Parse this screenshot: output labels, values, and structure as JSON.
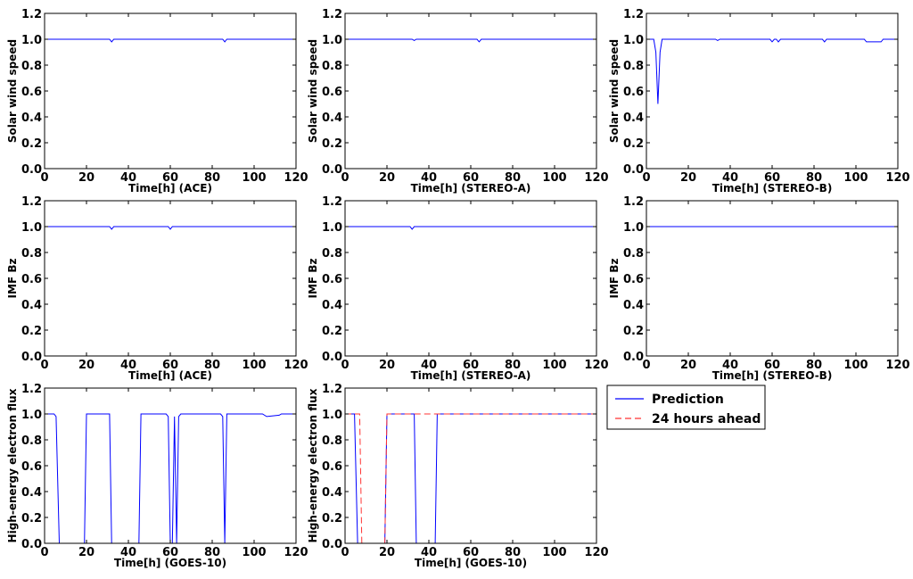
{
  "chart_data": [
    {
      "type": "line",
      "xlabel": "Time[h] (ACE)",
      "ylabel": "Solar wind speed",
      "xlim": [
        0,
        120
      ],
      "ylim": [
        0,
        1.2
      ],
      "xticks": [
        "0",
        "20",
        "40",
        "60",
        "80",
        "100",
        "120"
      ],
      "yticks": [
        "0.0",
        "0.2",
        "0.4",
        "0.6",
        "0.8",
        "1.0",
        "1.2"
      ],
      "series": [
        {
          "name": "Prediction",
          "color": "#0000ff",
          "style": "solid",
          "x": [
            0,
            31,
            32,
            33,
            85,
            86,
            87,
            120
          ],
          "y": [
            1,
            1,
            0.98,
            1,
            1,
            0.98,
            1,
            1
          ]
        }
      ]
    },
    {
      "type": "line",
      "xlabel": "Time[h] (STEREO-A)",
      "ylabel": "Solar wind speed",
      "xlim": [
        0,
        120
      ],
      "ylim": [
        0,
        1.2
      ],
      "xticks": [
        "0",
        "20",
        "40",
        "60",
        "80",
        "100",
        "120"
      ],
      "yticks": [
        "0.0",
        "0.2",
        "0.4",
        "0.6",
        "0.8",
        "1.0",
        "1.2"
      ],
      "series": [
        {
          "name": "Prediction",
          "color": "#0000ff",
          "style": "solid",
          "x": [
            0,
            32,
            33,
            34,
            63,
            64,
            65,
            120
          ],
          "y": [
            1,
            1,
            0.99,
            1,
            1,
            0.98,
            1,
            1
          ]
        }
      ]
    },
    {
      "type": "line",
      "xlabel": "Time[h] (STEREO-B)",
      "ylabel": "Solar wind speed",
      "xlim": [
        0,
        120
      ],
      "ylim": [
        0,
        1.2
      ],
      "xticks": [
        "0",
        "20",
        "40",
        "60",
        "80",
        "100",
        "120"
      ],
      "yticks": [
        "0.0",
        "0.2",
        "0.4",
        "0.6",
        "0.8",
        "1.0",
        "1.2"
      ],
      "series": [
        {
          "name": "Prediction",
          "color": "#0000ff",
          "style": "solid",
          "x": [
            0,
            3.5,
            4.5,
            5.5,
            6.5,
            7.5,
            33,
            34,
            35,
            59,
            60,
            61,
            62,
            63,
            64,
            84,
            85,
            86,
            104,
            105,
            112,
            113,
            120
          ],
          "y": [
            1,
            1,
            0.9,
            0.5,
            0.9,
            1,
            1,
            0.99,
            1,
            1,
            0.98,
            1,
            1,
            0.98,
            1,
            1,
            0.98,
            1,
            1,
            0.98,
            0.98,
            1,
            1
          ]
        }
      ]
    },
    {
      "type": "line",
      "xlabel": "Time[h] (ACE)",
      "ylabel": "IMF Bz",
      "xlim": [
        0,
        120
      ],
      "ylim": [
        0,
        1.2
      ],
      "xticks": [
        "0",
        "20",
        "40",
        "60",
        "80",
        "100",
        "120"
      ],
      "yticks": [
        "0.0",
        "0.2",
        "0.4",
        "0.6",
        "0.8",
        "1.0",
        "1.2"
      ],
      "series": [
        {
          "name": "Prediction",
          "color": "#0000ff",
          "style": "solid",
          "x": [
            0,
            31,
            32,
            33,
            59,
            60,
            61,
            120
          ],
          "y": [
            1,
            1,
            0.98,
            1,
            1,
            0.98,
            1,
            1
          ]
        }
      ]
    },
    {
      "type": "line",
      "xlabel": "Time[h] (STEREO-A)",
      "ylabel": "IMF Bz",
      "xlim": [
        0,
        120
      ],
      "ylim": [
        0,
        1.2
      ],
      "xticks": [
        "0",
        "20",
        "40",
        "60",
        "80",
        "100",
        "120"
      ],
      "yticks": [
        "0.0",
        "0.2",
        "0.4",
        "0.6",
        "0.8",
        "1.0",
        "1.2"
      ],
      "series": [
        {
          "name": "Prediction",
          "color": "#0000ff",
          "style": "solid",
          "x": [
            0,
            31,
            32,
            33,
            120
          ],
          "y": [
            1,
            1,
            0.98,
            1,
            1
          ]
        }
      ]
    },
    {
      "type": "line",
      "xlabel": "Time[h] (STEREO-B)",
      "ylabel": "IMF Bz",
      "xlim": [
        0,
        120
      ],
      "ylim": [
        0,
        1.2
      ],
      "xticks": [
        "0",
        "20",
        "40",
        "60",
        "80",
        "100",
        "120"
      ],
      "yticks": [
        "0.0",
        "0.2",
        "0.4",
        "0.6",
        "0.8",
        "1.0",
        "1.2"
      ],
      "series": [
        {
          "name": "Prediction",
          "color": "#0000ff",
          "style": "solid",
          "x": [
            0,
            120
          ],
          "y": [
            1,
            1
          ]
        }
      ]
    },
    {
      "type": "line",
      "xlabel": "Time[h] (GOES-10)",
      "ylabel": "High-energy electron flux",
      "xlim": [
        0,
        120
      ],
      "ylim": [
        0,
        1.2
      ],
      "xticks": [
        "0",
        "20",
        "40",
        "60",
        "80",
        "100",
        "120"
      ],
      "yticks": [
        "0.0",
        "0.2",
        "0.4",
        "0.6",
        "0.8",
        "1.0",
        "1.2"
      ],
      "series": [
        {
          "name": "Prediction",
          "color": "#0000ff",
          "style": "solid",
          "x": [
            0,
            4.5,
            5.5,
            7,
            19,
            20,
            31,
            32,
            45,
            46,
            58,
            59,
            60,
            61,
            62,
            63,
            64,
            65,
            84,
            85,
            86,
            87,
            104,
            106,
            112,
            113,
            120
          ],
          "y": [
            1,
            1,
            0.98,
            0,
            0,
            1,
            1,
            0,
            0,
            1,
            1,
            0.98,
            0,
            0,
            0.98,
            0,
            0.98,
            1,
            1,
            0.98,
            0,
            1,
            1,
            0.98,
            0.99,
            1,
            1
          ]
        }
      ]
    },
    {
      "type": "line",
      "xlabel": "Time[h] (GOES-10)",
      "ylabel": "High-energy electron flux",
      "xlim": [
        0,
        120
      ],
      "ylim": [
        0,
        1.2
      ],
      "xticks": [
        "0",
        "20",
        "40",
        "60",
        "80",
        "100",
        "120"
      ],
      "yticks": [
        "0.0",
        "0.2",
        "0.4",
        "0.6",
        "0.8",
        "1.0",
        "1.2"
      ],
      "series": [
        {
          "name": "Prediction",
          "color": "#0000ff",
          "style": "solid",
          "x": [
            0,
            4.5,
            6,
            19,
            20,
            33,
            34,
            43,
            44,
            120
          ],
          "y": [
            1,
            1,
            0,
            0,
            1,
            1,
            0,
            0,
            1,
            1
          ]
        },
        {
          "name": "24 hours ahead",
          "color": "#ff3333",
          "style": "dashed",
          "x": [
            0,
            7,
            8,
            19,
            20,
            120
          ],
          "y": [
            1,
            1,
            0,
            0,
            1,
            1
          ]
        }
      ]
    }
  ],
  "legend": {
    "entries": [
      {
        "label": "Prediction",
        "color": "#0000ff",
        "style": "solid"
      },
      {
        "label": "24 hours ahead",
        "color": "#ff3333",
        "style": "dashed"
      }
    ]
  }
}
